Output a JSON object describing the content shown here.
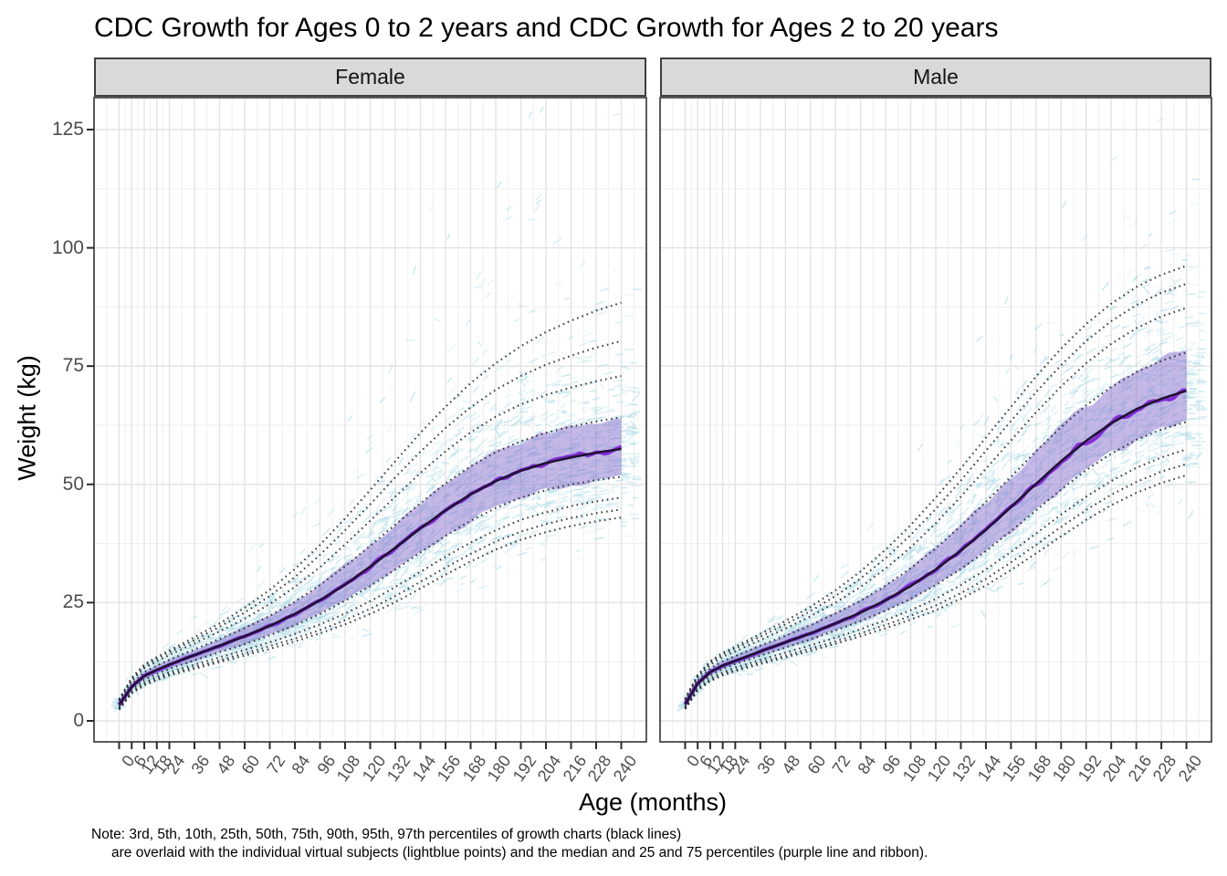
{
  "title": "CDC Growth for Ages 0 to 2 years and CDC Growth for Ages 2 to 20 years",
  "note": {
    "line1": "Note: 3rd, 5th, 10th, 25th, 50th, 75th, 90th, 95th, 97th percentiles of growth charts (black lines)",
    "line2": "are overlaid with the individual virtual subjects (lightblue points) and the median and 25 and 75 percentiles (purple line and ribbon)."
  },
  "chart_data": {
    "type": "line",
    "title": "CDC Growth for Ages 0 to 2 years and CDC Growth for Ages 2 to 20 years",
    "xlabel": "Age (months)",
    "ylabel": "Weight (kg)",
    "xlim": [
      -12,
      252
    ],
    "ylim": [
      -4.5,
      131.8
    ],
    "grid": "on",
    "legend_position": "none",
    "x_ticks": [
      0,
      6,
      12,
      18,
      24,
      36,
      48,
      60,
      72,
      84,
      96,
      108,
      120,
      132,
      144,
      156,
      168,
      180,
      192,
      204,
      216,
      228,
      240
    ],
    "y_ticks": [
      0,
      25,
      50,
      75,
      100,
      125
    ],
    "ages_months": [
      0,
      6,
      12,
      18,
      24,
      36,
      48,
      60,
      72,
      84,
      96,
      108,
      120,
      132,
      144,
      156,
      168,
      180,
      192,
      204,
      216,
      228,
      240
    ],
    "percentile_labels": [
      "3rd",
      "5th",
      "10th",
      "25th",
      "50th",
      "75th",
      "90th",
      "95th",
      "97th"
    ],
    "overlays": {
      "percentile_lines": "black dotted lines",
      "subjects": "lightblue points",
      "subject_median_iqr": "purple line and ribbon"
    },
    "facets": [
      {
        "label": "Female",
        "percentiles": {
          "p3": [
            2.4,
            5.8,
            7.5,
            8.6,
            9.6,
            11.0,
            12.4,
            13.8,
            15.2,
            16.8,
            18.5,
            20.4,
            22.6,
            25.1,
            28.0,
            30.9,
            33.7,
            36.2,
            38.3,
            39.9,
            41.2,
            42.2,
            43.0
          ],
          "p5": [
            2.5,
            6.0,
            7.8,
            8.9,
            9.9,
            11.4,
            12.8,
            14.3,
            15.8,
            17.4,
            19.2,
            21.3,
            23.7,
            26.4,
            29.4,
            32.4,
            35.3,
            37.9,
            40.0,
            41.6,
            42.9,
            43.9,
            44.7
          ],
          "p10": [
            2.7,
            6.3,
            8.1,
            9.3,
            10.3,
            11.9,
            13.4,
            15.0,
            16.6,
            18.4,
            20.4,
            22.7,
            25.3,
            28.3,
            31.5,
            34.7,
            37.7,
            40.3,
            42.5,
            44.1,
            45.4,
            46.4,
            47.2
          ],
          "p25": [
            3.0,
            6.7,
            8.7,
            9.9,
            11.0,
            12.8,
            14.5,
            16.2,
            18.1,
            20.2,
            22.6,
            25.4,
            28.5,
            32.0,
            35.6,
            39.1,
            42.3,
            45.0,
            47.2,
            48.8,
            50.0,
            50.9,
            51.6
          ],
          "p50": [
            3.4,
            7.2,
            9.5,
            10.8,
            11.9,
            13.9,
            15.9,
            17.9,
            20.1,
            22.6,
            25.5,
            28.8,
            32.6,
            36.6,
            40.7,
            44.5,
            47.9,
            50.7,
            52.9,
            54.5,
            55.7,
            56.7,
            57.5
          ],
          "p75": [
            3.8,
            7.8,
            10.3,
            11.7,
            12.9,
            15.1,
            17.3,
            19.6,
            22.2,
            25.2,
            28.7,
            32.7,
            37.0,
            41.5,
            46.0,
            50.2,
            53.8,
            56.8,
            59.1,
            60.9,
            62.2,
            63.3,
            64.2
          ],
          "p90": [
            4.2,
            8.4,
            11.1,
            12.6,
            13.9,
            16.4,
            18.9,
            21.6,
            24.7,
            28.3,
            32.5,
            37.3,
            42.3,
            47.4,
            52.4,
            57.0,
            61.0,
            64.3,
            66.9,
            68.9,
            70.5,
            71.8,
            72.9
          ],
          "p95": [
            4.4,
            8.8,
            11.5,
            13.1,
            14.5,
            17.1,
            19.9,
            22.9,
            26.4,
            30.4,
            35.1,
            40.3,
            45.8,
            51.5,
            56.9,
            61.9,
            66.3,
            70.0,
            72.9,
            75.3,
            77.2,
            78.9,
            80.3
          ],
          "p97": [
            4.6,
            9.1,
            11.9,
            13.5,
            14.9,
            17.7,
            20.6,
            23.9,
            27.7,
            32.1,
            37.2,
            42.8,
            48.8,
            54.9,
            60.9,
            66.4,
            71.4,
            75.6,
            79.2,
            82.2,
            84.6,
            86.7,
            88.4
          ]
        }
      },
      {
        "label": "Male",
        "percentiles": {
          "p3": [
            2.5,
            6.4,
            8.4,
            9.6,
            10.5,
            12.0,
            13.4,
            14.8,
            16.3,
            17.9,
            19.6,
            21.4,
            23.4,
            25.8,
            28.6,
            31.9,
            35.4,
            39.0,
            42.5,
            45.6,
            48.2,
            50.3,
            51.9
          ],
          "p5": [
            2.6,
            6.6,
            8.6,
            9.9,
            10.8,
            12.4,
            13.8,
            15.3,
            16.8,
            18.5,
            20.3,
            22.2,
            24.4,
            27.0,
            30.0,
            33.5,
            37.2,
            41.0,
            44.6,
            47.8,
            50.5,
            52.7,
            54.3
          ],
          "p10": [
            2.8,
            6.9,
            9.0,
            10.3,
            11.3,
            12.9,
            14.4,
            16.0,
            17.6,
            19.4,
            21.3,
            23.4,
            25.8,
            28.7,
            32.0,
            35.7,
            39.6,
            43.6,
            47.4,
            50.7,
            53.5,
            55.7,
            57.4
          ],
          "p25": [
            3.1,
            7.4,
            9.6,
            11.0,
            12.0,
            13.8,
            15.5,
            17.2,
            19.1,
            21.1,
            23.3,
            25.8,
            28.7,
            32.1,
            35.9,
            40.1,
            44.5,
            48.9,
            53.0,
            56.5,
            59.4,
            61.6,
            63.2
          ],
          "p50": [
            3.5,
            7.9,
            10.3,
            11.7,
            12.7,
            14.7,
            16.6,
            18.5,
            20.6,
            22.9,
            25.5,
            28.5,
            32.0,
            36.0,
            40.4,
            45.2,
            50.1,
            54.9,
            59.2,
            62.9,
            65.9,
            68.1,
            69.8
          ],
          "p75": [
            3.9,
            8.5,
            11.1,
            12.6,
            13.7,
            15.9,
            18.0,
            20.2,
            22.7,
            25.4,
            28.6,
            32.3,
            36.5,
            41.2,
            46.3,
            51.6,
            57.0,
            62.1,
            66.7,
            70.6,
            73.7,
            76.1,
            77.9
          ],
          "p90": [
            4.3,
            9.1,
            11.8,
            13.5,
            14.7,
            17.1,
            19.5,
            22.1,
            25.0,
            28.3,
            32.2,
            36.7,
            41.8,
            47.4,
            53.3,
            59.3,
            65.2,
            70.7,
            75.6,
            79.7,
            83.0,
            85.5,
            87.3
          ],
          "p95": [
            4.5,
            9.5,
            12.3,
            14.0,
            15.3,
            17.8,
            20.4,
            23.2,
            26.4,
            30.1,
            34.4,
            39.3,
            44.8,
            50.8,
            57.1,
            63.4,
            69.5,
            75.2,
            80.3,
            84.5,
            87.9,
            90.5,
            92.4
          ],
          "p97": [
            4.7,
            9.7,
            12.6,
            14.4,
            15.7,
            18.4,
            21.1,
            24.1,
            27.6,
            31.6,
            36.2,
            41.4,
            47.2,
            53.4,
            59.9,
            66.4,
            72.8,
            78.7,
            83.9,
            88.2,
            91.7,
            94.3,
            96.2
          ]
        }
      }
    ],
    "colors": {
      "cloud": "#8ecfdf",
      "ribbon": "#8164cb",
      "ribbon_edge": "#9a7fd9",
      "median_line": "#7d22d6",
      "p50_line": "#201232",
      "percentile_dots": "#161616",
      "strip_bg": "#d9d9d9",
      "strip_border": "#404040",
      "panel_border": "#333333",
      "grid_major": "#e3e3e3",
      "grid_minor": "#efefef",
      "tick_color": "#2b2b2b",
      "axis_text": "#4d4d4d"
    }
  }
}
